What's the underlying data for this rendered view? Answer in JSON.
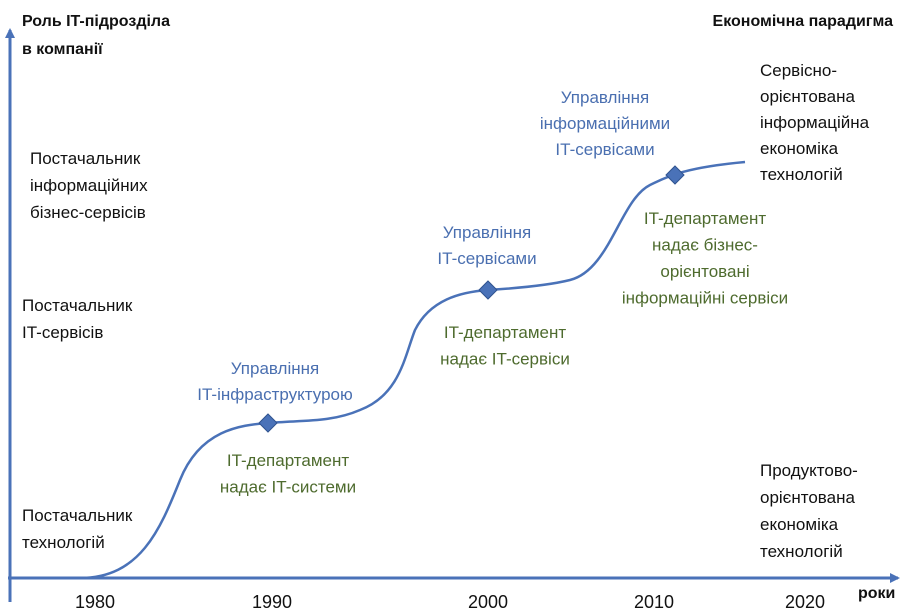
{
  "y_axis_title": [
    "Роль IT-підрозділа",
    "в компанії"
  ],
  "right_title": "Економічна парадигма",
  "x_axis_title": "роки",
  "roles": [
    [
      "Постачальник",
      "інформаційних",
      "бізнес-сервісів"
    ],
    [
      "Постачальник",
      "IT-сервісів"
    ],
    [
      "Постачальник",
      "технологій"
    ]
  ],
  "paradigms": [
    [
      "Сервісно-",
      "орієнтована",
      "інформаційна",
      "економіка",
      "технологій"
    ],
    [
      "Продуктово-",
      "орієнтована",
      "економіка",
      "технологій"
    ]
  ],
  "stages": [
    {
      "title": [
        "Управління",
        "IT-інфраструктурою"
      ],
      "description": [
        "IT-департамент",
        "надає IT-системи"
      ]
    },
    {
      "title": [
        "Управління",
        "IT-сервісами"
      ],
      "description": [
        "IT-департамент",
        "надає IT-сервіси"
      ]
    },
    {
      "title": [
        "Управління",
        "інформаційними",
        "IT-сервісами"
      ],
      "description": [
        "IT-департамент",
        "надає бізнес-",
        "орієнтовані",
        "інформаційні сервіси"
      ]
    }
  ],
  "years": [
    "1980",
    "1990",
    "2000",
    "2010",
    "2020"
  ]
}
